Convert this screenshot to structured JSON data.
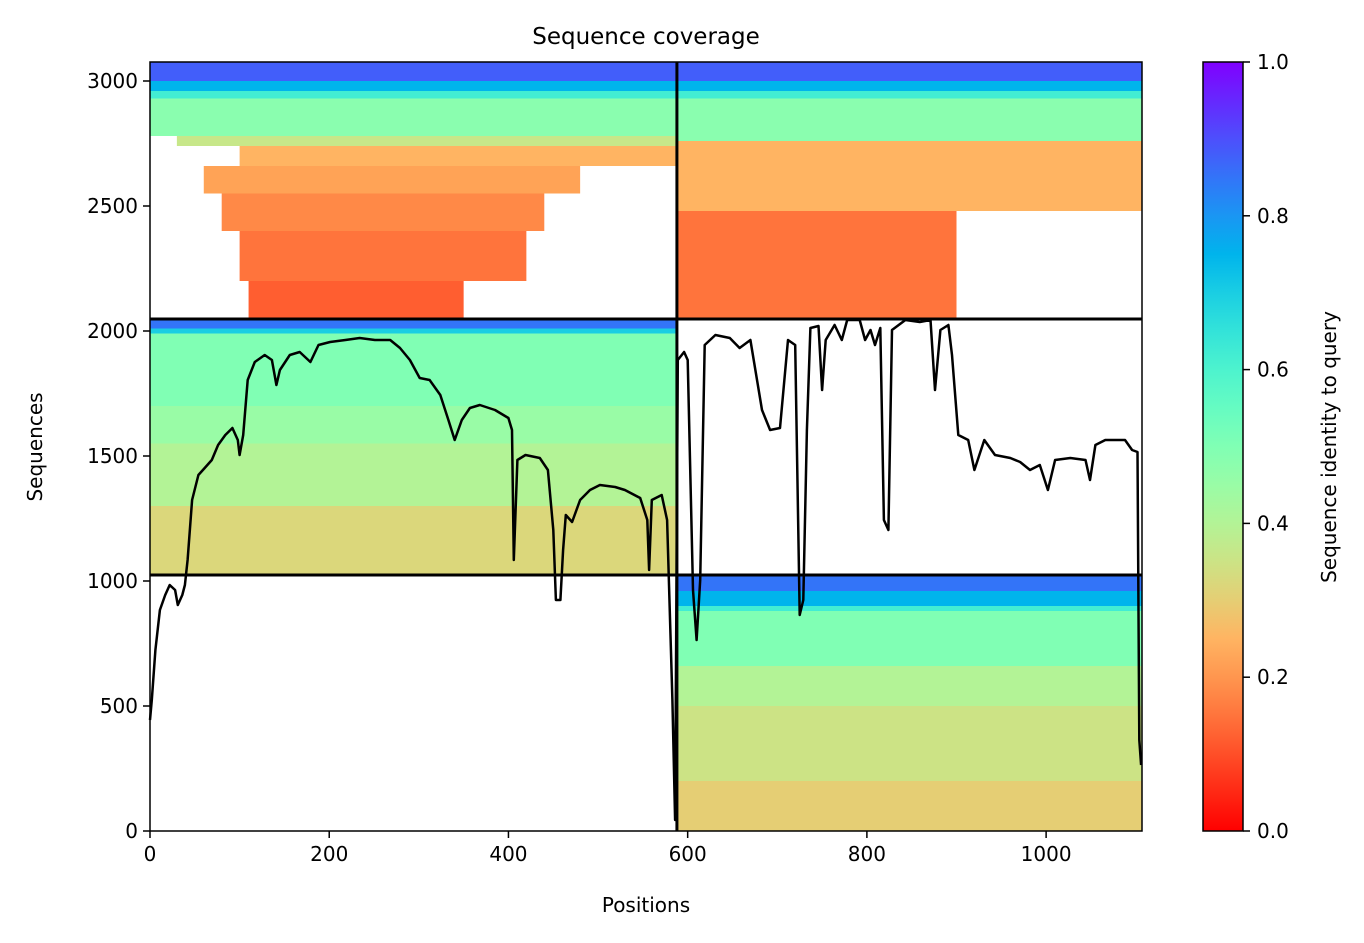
{
  "chart_data": {
    "type": "coverage",
    "title": "Sequence coverage",
    "xlabel": "Positions",
    "ylabel": "Sequences",
    "xlim": [
      0,
      1107
    ],
    "xticks": [
      0,
      200,
      400,
      600,
      800,
      1000
    ],
    "ylim": [
      0,
      3076
    ],
    "yticks": [
      0,
      500,
      1000,
      1500,
      2000,
      2500,
      3000
    ],
    "colormap": "rainbow_r",
    "colorbar": {
      "label": "Sequence identity to query",
      "lim": [
        0,
        1
      ],
      "ticks": [
        {
          "value": 0,
          "label": "0.0"
        },
        0.2,
        0.4,
        0.6,
        0.8,
        {
          "value": 1,
          "label": "1.0"
        }
      ]
    },
    "dividers": {
      "x": [
        588
      ],
      "y": [
        1024,
        2048
      ]
    },
    "heatmap": [
      {
        "x0": 0,
        "x1": 588,
        "y0": 3000,
        "y1": 3076,
        "value": 0.88
      },
      {
        "x0": 0,
        "x1": 588,
        "y0": 2960,
        "y1": 3000,
        "value": 0.75
      },
      {
        "x0": 0,
        "x1": 588,
        "y0": 2930,
        "y1": 2960,
        "value": 0.62
      },
      {
        "x0": 0,
        "x1": 588,
        "y0": 2780,
        "y1": 2930,
        "value": 0.48
      },
      {
        "x0": 30,
        "x1": 588,
        "y0": 2740,
        "y1": 2780,
        "value": 0.36
      },
      {
        "x0": 100,
        "x1": 588,
        "y0": 2660,
        "y1": 2740,
        "value": 0.25
      },
      {
        "x0": 60,
        "x1": 480,
        "y0": 2550,
        "y1": 2660,
        "value": 0.22
      },
      {
        "x0": 80,
        "x1": 440,
        "y0": 2400,
        "y1": 2550,
        "value": 0.18
      },
      {
        "x0": 100,
        "x1": 420,
        "y0": 2200,
        "y1": 2400,
        "value": 0.15
      },
      {
        "x0": 110,
        "x1": 350,
        "y0": 2048,
        "y1": 2200,
        "value": 0.12
      },
      {
        "x0": 588,
        "x1": 1107,
        "y0": 3000,
        "y1": 3076,
        "value": 0.88
      },
      {
        "x0": 588,
        "x1": 1107,
        "y0": 2960,
        "y1": 3000,
        "value": 0.75
      },
      {
        "x0": 588,
        "x1": 1107,
        "y0": 2930,
        "y1": 2960,
        "value": 0.62
      },
      {
        "x0": 588,
        "x1": 1107,
        "y0": 2760,
        "y1": 2930,
        "value": 0.48
      },
      {
        "x0": 588,
        "x1": 1107,
        "y0": 2480,
        "y1": 2760,
        "value": 0.25
      },
      {
        "x0": 588,
        "x1": 900,
        "y0": 2048,
        "y1": 2480,
        "value": 0.15
      },
      {
        "x0": 0,
        "x1": 588,
        "y0": 2010,
        "y1": 2048,
        "value": 0.85
      },
      {
        "x0": 0,
        "x1": 588,
        "y0": 1990,
        "y1": 2010,
        "value": 0.7
      },
      {
        "x0": 0,
        "x1": 588,
        "y0": 1700,
        "y1": 1990,
        "value": 0.5
      },
      {
        "x0": 0,
        "x1": 588,
        "y0": 1550,
        "y1": 1700,
        "value": 0.45
      },
      {
        "x0": 0,
        "x1": 588,
        "y0": 1300,
        "y1": 1550,
        "value": 0.4
      },
      {
        "x0": 0,
        "x1": 588,
        "y0": 1024,
        "y1": 1300,
        "value": 0.32
      },
      {
        "x0": 588,
        "x1": 1107,
        "y0": 960,
        "y1": 1024,
        "value": 0.85
      },
      {
        "x0": 588,
        "x1": 1107,
        "y0": 900,
        "y1": 960,
        "value": 0.75
      },
      {
        "x0": 588,
        "x1": 1107,
        "y0": 880,
        "y1": 900,
        "value": 0.62
      },
      {
        "x0": 588,
        "x1": 1107,
        "y0": 660,
        "y1": 880,
        "value": 0.5
      },
      {
        "x0": 588,
        "x1": 1107,
        "y0": 500,
        "y1": 660,
        "value": 0.4
      },
      {
        "x0": 588,
        "x1": 1107,
        "y0": 200,
        "y1": 500,
        "value": 0.35
      },
      {
        "x0": 588,
        "x1": 1107,
        "y0": 0,
        "y1": 200,
        "value": 0.3
      }
    ],
    "line": {
      "color": "#000000",
      "x": [
        0,
        2,
        6,
        11,
        17,
        22,
        28,
        31,
        36,
        39,
        42,
        47,
        54,
        61,
        69,
        76,
        84,
        92,
        98,
        100,
        104,
        109,
        117,
        128,
        136,
        141,
        145,
        156,
        167,
        179,
        188,
        201,
        218,
        234,
        251,
        268,
        279,
        290,
        301,
        312,
        324,
        333,
        340,
        348,
        357,
        368,
        385,
        400,
        404,
        406,
        410,
        419,
        435,
        444,
        450,
        453,
        458,
        461,
        464,
        471,
        480,
        491,
        502,
        519,
        530,
        547,
        555,
        557,
        560,
        571,
        577,
        583,
        586,
        589,
        596,
        600,
        606,
        610,
        614,
        619,
        631,
        647,
        658,
        670,
        683,
        692,
        703,
        712,
        720,
        725,
        729,
        733,
        737,
        746,
        750,
        754,
        764,
        772,
        778,
        792,
        798,
        804,
        809,
        815,
        819,
        824,
        828,
        843,
        859,
        871,
        876,
        882,
        891,
        895,
        902,
        913,
        920,
        931,
        943,
        960,
        971,
        982,
        993,
        1002,
        1010,
        1027,
        1044,
        1049,
        1055,
        1066,
        1088,
        1096,
        1102,
        1104,
        1106
      ],
      "y": [
        444,
        524,
        724,
        884,
        944,
        984,
        964,
        904,
        944,
        984,
        1084,
        1324,
        1424,
        1452,
        1484,
        1544,
        1584,
        1612,
        1564,
        1504,
        1584,
        1804,
        1876,
        1904,
        1884,
        1784,
        1844,
        1904,
        1916,
        1876,
        1944,
        1956,
        1964,
        1972,
        1964,
        1964,
        1932,
        1884,
        1812,
        1804,
        1744,
        1644,
        1564,
        1644,
        1692,
        1704,
        1684,
        1652,
        1604,
        1084,
        1484,
        1504,
        1492,
        1444,
        1204,
        924,
        924,
        1124,
        1264,
        1236,
        1324,
        1364,
        1384,
        1376,
        1364,
        1332,
        1244,
        1044,
        1324,
        1344,
        1244,
        524,
        44,
        1884,
        1916,
        1884,
        964,
        764,
        1004,
        1944,
        1984,
        1972,
        1932,
        1964,
        1684,
        1604,
        1612,
        1964,
        1944,
        864,
        924,
        1604,
        2012,
        2020,
        1764,
        1964,
        2024,
        1964,
        2044,
        2044,
        1964,
        2004,
        1944,
        2012,
        1244,
        1204,
        2004,
        2044,
        2036,
        2044,
        1764,
        2004,
        2024,
        1904,
        1584,
        1564,
        1444,
        1564,
        1504,
        1492,
        1476,
        1444,
        1464,
        1364,
        1484,
        1492,
        1484,
        1404,
        1544,
        1564,
        1564,
        1524,
        1516,
        364,
        264
      ]
    }
  }
}
